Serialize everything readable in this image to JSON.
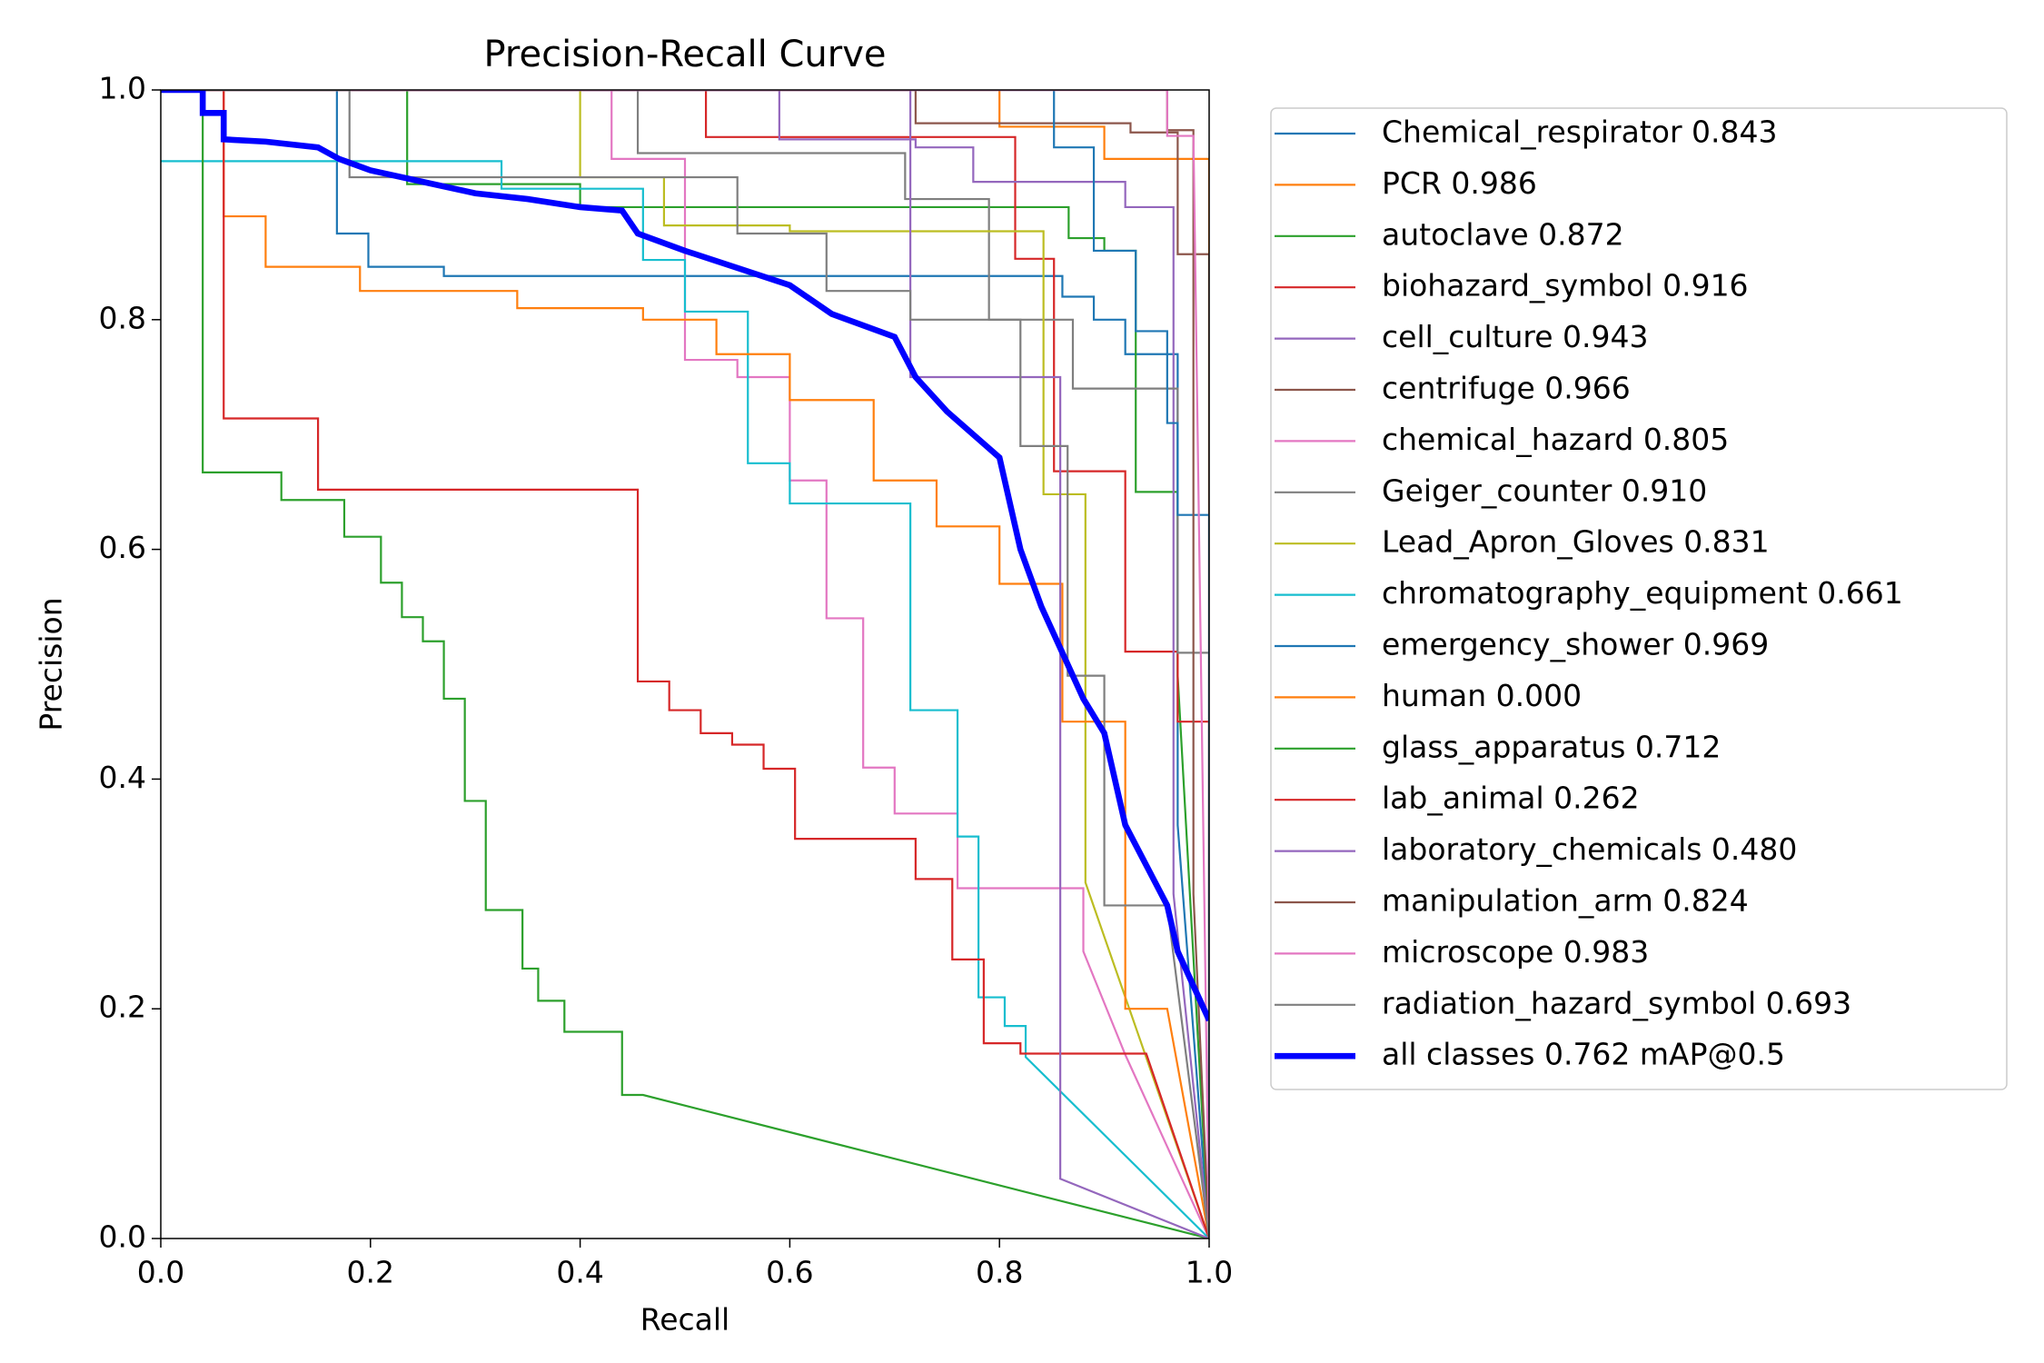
{
  "chart_data": {
    "type": "line",
    "title": "Precision-Recall Curve",
    "x_label": "Recall",
    "y_label": "Precision",
    "xlim": [
      0,
      1
    ],
    "ylim": [
      0,
      1
    ],
    "xticks": [
      {
        "value": 0,
        "label": "0.0"
      },
      {
        "value": 0.2,
        "label": "0.2"
      },
      {
        "value": 0.4,
        "label": "0.4"
      },
      {
        "value": 0.6,
        "label": "0.6"
      },
      {
        "value": 0.8,
        "label": "0.8"
      },
      {
        "value": 1,
        "label": "1.0"
      }
    ],
    "yticks": [
      {
        "value": 0,
        "label": "0.0"
      },
      {
        "value": 0.2,
        "label": "0.2"
      },
      {
        "value": 0.4,
        "label": "0.4"
      },
      {
        "value": 0.6,
        "label": "0.6"
      },
      {
        "value": 0.8,
        "label": "0.8"
      },
      {
        "value": 1,
        "label": "1.0"
      }
    ],
    "legend": "outside-right",
    "series": [
      {
        "name": "Chemical_respirator 0.843",
        "color": "#1f77b4",
        "width": 1,
        "x": [
          0,
          0.168,
          0.168,
          0.198,
          0.198,
          0.27,
          0.27,
          0.86,
          0.86,
          0.89,
          0.89,
          0.92,
          0.92,
          0.97,
          0.97,
          1.0
        ],
        "values": [
          1,
          1,
          0.875,
          0.875,
          0.846,
          0.846,
          0.838,
          0.838,
          0.82,
          0.82,
          0.8,
          0.8,
          0.77,
          0.77,
          0.36,
          0
        ]
      },
      {
        "name": "PCR 0.986",
        "color": "#ff7f0e",
        "width": 1,
        "x": [
          0,
          0.8,
          0.8,
          0.9,
          0.9,
          1.0,
          1.0
        ],
        "values": [
          1,
          1,
          0.968,
          0.968,
          0.94,
          0.94,
          0
        ]
      },
      {
        "name": "autoclave 0.872",
        "color": "#2ca02c",
        "width": 1,
        "x": [
          0,
          0.235,
          0.235,
          0.4,
          0.4,
          0.866,
          0.866,
          0.9,
          0.9,
          0.93,
          0.93,
          0.97,
          0.97,
          1
        ],
        "values": [
          1,
          1,
          0.918,
          0.918,
          0.898,
          0.898,
          0.871,
          0.871,
          0.86,
          0.86,
          0.65,
          0.65,
          0.49,
          0
        ]
      },
      {
        "name": "biohazard_symbol 0.916",
        "color": "#d62728",
        "width": 1,
        "x": [
          0,
          0.52,
          0.52,
          0.815,
          0.815,
          0.852,
          0.852,
          0.92,
          0.92,
          0.97,
          0.97,
          1,
          1
        ],
        "values": [
          1,
          1,
          0.959,
          0.959,
          0.853,
          0.853,
          0.668,
          0.668,
          0.511,
          0.511,
          0.45,
          0.45,
          0
        ]
      },
      {
        "name": "cell_culture 0.943",
        "color": "#9467bd",
        "width": 1,
        "x": [
          0,
          0.59,
          0.59,
          0.72,
          0.72,
          0.775,
          0.775,
          0.92,
          0.92,
          0.966,
          0.966,
          1
        ],
        "values": [
          1,
          1,
          0.957,
          0.957,
          0.95,
          0.95,
          0.92,
          0.92,
          0.898,
          0.898,
          0.3,
          0
        ]
      },
      {
        "name": "centrifuge 0.966",
        "color": "#8c564b",
        "width": 1,
        "x": [
          0,
          0.72,
          0.72,
          0.925,
          0.925,
          0.97,
          0.97,
          1,
          1
        ],
        "values": [
          1,
          1,
          0.971,
          0.971,
          0.963,
          0.963,
          0.857,
          0.857,
          0
        ]
      },
      {
        "name": "chemical_hazard 0.805",
        "color": "#e377c2",
        "width": 1,
        "x": [
          0,
          0.43,
          0.43,
          0.5,
          0.5,
          0.55,
          0.55,
          0.6,
          0.6,
          0.635,
          0.635,
          0.67,
          0.67,
          0.7,
          0.7,
          0.76,
          0.76,
          0.88,
          0.88,
          0.92,
          1
        ],
        "values": [
          1,
          1,
          0.94,
          0.94,
          0.765,
          0.765,
          0.75,
          0.75,
          0.66,
          0.66,
          0.54,
          0.54,
          0.41,
          0.41,
          0.37,
          0.37,
          0.305,
          0.305,
          0.25,
          0.16,
          0
        ]
      },
      {
        "name": "Geiger_counter 0.910",
        "color": "#7f7f7f",
        "width": 1,
        "x": [
          0,
          0.455,
          0.455,
          0.71,
          0.71,
          0.79,
          0.79,
          0.87,
          0.87,
          0.97,
          0.97,
          1,
          1
        ],
        "values": [
          1,
          1,
          0.945,
          0.945,
          0.905,
          0.905,
          0.8,
          0.8,
          0.74,
          0.74,
          0.51,
          0.51,
          0
        ]
      },
      {
        "name": "Lead_Apron_Gloves 0.831",
        "color": "#bcbd22",
        "width": 1,
        "x": [
          0,
          0.4,
          0.4,
          0.48,
          0.48,
          0.6,
          0.6,
          0.842,
          0.842,
          0.882,
          0.882,
          1
        ],
        "values": [
          1,
          1,
          0.924,
          0.924,
          0.882,
          0.882,
          0.877,
          0.877,
          0.648,
          0.648,
          0.31,
          0
        ]
      },
      {
        "name": "chromatography_equipment 0.661",
        "color": "#17becf",
        "width": 1,
        "x": [
          0,
          0.325,
          0.325,
          0.46,
          0.46,
          0.5,
          0.5,
          0.56,
          0.56,
          0.6,
          0.6,
          0.715,
          0.715,
          0.76,
          0.76,
          0.78,
          0.78,
          0.805,
          0.805,
          0.825,
          0.825,
          1
        ],
        "values": [
          0.938,
          0.938,
          0.914,
          0.914,
          0.852,
          0.852,
          0.807,
          0.807,
          0.675,
          0.675,
          0.64,
          0.64,
          0.46,
          0.46,
          0.35,
          0.35,
          0.21,
          0.21,
          0.185,
          0.185,
          0.158,
          0
        ]
      },
      {
        "name": "emergency_shower 0.969",
        "color": "#1f77b4",
        "width": 1,
        "x": [
          0,
          0.852,
          0.852,
          0.89,
          0.89,
          0.93,
          0.93,
          0.96,
          0.96,
          0.97,
          0.97,
          1,
          1
        ],
        "values": [
          1,
          1,
          0.95,
          0.95,
          0.86,
          0.86,
          0.79,
          0.79,
          0.71,
          0.71,
          0.63,
          0.63,
          0
        ]
      },
      {
        "name": "human 0.000",
        "color": "#ff7f0e",
        "width": 1,
        "x": [
          0,
          0.06,
          0.06,
          0.1,
          0.1,
          0.19,
          0.19,
          0.34,
          0.34,
          0.46,
          0.46,
          0.53,
          0.53,
          0.6,
          0.6,
          0.68,
          0.68,
          0.74,
          0.74,
          0.8,
          0.8,
          0.86,
          0.86,
          0.92,
          0.92,
          0.96,
          1
        ],
        "values": [
          1,
          1,
          0.89,
          0.89,
          0.846,
          0.846,
          0.825,
          0.825,
          0.81,
          0.81,
          0.8,
          0.8,
          0.77,
          0.77,
          0.73,
          0.73,
          0.66,
          0.66,
          0.62,
          0.62,
          0.57,
          0.57,
          0.45,
          0.45,
          0.2,
          0.2,
          0
        ]
      },
      {
        "name": "glass_apparatus 0.712",
        "color": "#2ca02c",
        "width": 1,
        "x": [
          0,
          0.04,
          0.04,
          0.115,
          0.115,
          0.175,
          0.175,
          0.21,
          0.21,
          0.23,
          0.23,
          0.25,
          0.25,
          0.27,
          0.27,
          0.29,
          0.29,
          0.31,
          0.31,
          0.345,
          0.345,
          0.36,
          0.36,
          0.385,
          0.385,
          0.44,
          0.44,
          0.46,
          1
        ],
        "values": [
          1,
          1,
          0.667,
          0.667,
          0.643,
          0.643,
          0.611,
          0.611,
          0.571,
          0.571,
          0.541,
          0.541,
          0.52,
          0.52,
          0.47,
          0.47,
          0.381,
          0.381,
          0.286,
          0.286,
          0.235,
          0.235,
          0.207,
          0.207,
          0.18,
          0.18,
          0.125,
          0.125,
          0
        ]
      },
      {
        "name": "lab_animal 0.262",
        "color": "#d62728",
        "width": 1,
        "x": [
          0,
          0.06,
          0.06,
          0.15,
          0.15,
          0.455,
          0.455,
          0.485,
          0.485,
          0.515,
          0.515,
          0.545,
          0.545,
          0.575,
          0.575,
          0.605,
          0.605,
          0.72,
          0.72,
          0.755,
          0.755,
          0.785,
          0.785,
          0.82,
          0.82,
          0.94,
          1
        ],
        "values": [
          1,
          1,
          0.714,
          0.714,
          0.652,
          0.652,
          0.485,
          0.485,
          0.46,
          0.46,
          0.44,
          0.44,
          0.43,
          0.43,
          0.409,
          0.409,
          0.348,
          0.348,
          0.313,
          0.313,
          0.243,
          0.243,
          0.17,
          0.17,
          0.161,
          0.161,
          0
        ]
      },
      {
        "name": "laboratory_chemicals 0.480",
        "color": "#9467bd",
        "width": 1,
        "x": [
          0,
          0.715,
          0.715,
          0.858,
          0.858,
          1
        ],
        "values": [
          1,
          1,
          0.75,
          0.75,
          0.052,
          0
        ]
      },
      {
        "name": "manipulation_arm 0.824",
        "color": "#8c564b",
        "width": 1,
        "x": [
          0,
          0.96,
          0.96,
          0.985,
          0.985,
          1
        ],
        "values": [
          1,
          1,
          0.965,
          0.965,
          0.3,
          0
        ]
      },
      {
        "name": "microscope 0.983",
        "color": "#e377c2",
        "width": 1,
        "x": [
          0,
          0.96,
          0.96,
          0.985,
          1
        ],
        "values": [
          1,
          1,
          0.96,
          0.96,
          0
        ]
      },
      {
        "name": "radiation_hazard_symbol 0.693",
        "color": "#7f7f7f",
        "width": 1,
        "x": [
          0,
          0.18,
          0.18,
          0.55,
          0.55,
          0.635,
          0.635,
          0.715,
          0.715,
          0.82,
          0.82,
          0.865,
          0.865,
          0.9,
          0.9,
          0.96,
          1
        ],
        "values": [
          1,
          1,
          0.924,
          0.924,
          0.875,
          0.875,
          0.825,
          0.825,
          0.8,
          0.8,
          0.69,
          0.69,
          0.49,
          0.49,
          0.29,
          0.29,
          0
        ]
      },
      {
        "name": "all classes 0.762 mAP@0.5",
        "color": "#0000ff",
        "width": 3,
        "x": [
          0,
          0.04,
          0.04,
          0.06,
          0.06,
          0.1,
          0.15,
          0.17,
          0.2,
          0.25,
          0.3,
          0.35,
          0.4,
          0.44,
          0.455,
          0.5,
          0.55,
          0.6,
          0.64,
          0.67,
          0.7,
          0.72,
          0.75,
          0.8,
          0.82,
          0.84,
          0.86,
          0.88,
          0.9,
          0.92,
          0.96,
          0.97,
          1
        ],
        "values": [
          1,
          1,
          0.98,
          0.98,
          0.957,
          0.955,
          0.95,
          0.94,
          0.93,
          0.92,
          0.91,
          0.905,
          0.898,
          0.895,
          0.875,
          0.86,
          0.845,
          0.83,
          0.805,
          0.795,
          0.785,
          0.75,
          0.72,
          0.68,
          0.6,
          0.55,
          0.51,
          0.47,
          0.44,
          0.36,
          0.29,
          0.25,
          0.19
        ]
      }
    ]
  }
}
